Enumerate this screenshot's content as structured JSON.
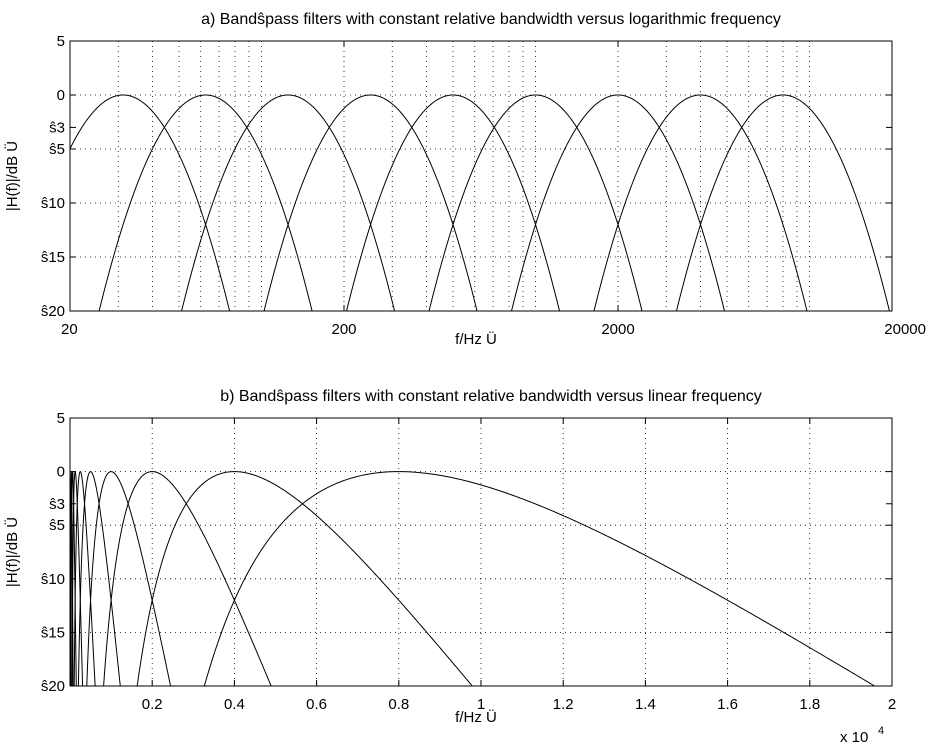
{
  "chart_data": [
    {
      "type": "line",
      "title": "a) Bandŝpass filters with constant relative bandwidth versus logarithmic frequency",
      "xlabel": "f/Hz Ü",
      "ylabel": "|H(f)|/dB Ü",
      "xscale": "log",
      "xlim": [
        20,
        20000
      ],
      "ylim": [
        -20,
        5
      ],
      "xticks": [
        20,
        200,
        2000,
        20000
      ],
      "xtick_labels": [
        "20",
        "200",
        "2000",
        "20000"
      ],
      "yticks": [
        5,
        0,
        -3,
        -5,
        -10,
        -15,
        -20
      ],
      "ytick_labels": [
        "5",
        "0",
        "ŝ3",
        "ŝ5",
        "ŝ10",
        "ŝ15",
        "ŝ20"
      ],
      "grid": true,
      "x_grid_lines": [
        20,
        30,
        40,
        50,
        60,
        70,
        80,
        90,
        100,
        200,
        300,
        400,
        500,
        600,
        700,
        800,
        900,
        1000,
        2000,
        3000,
        4000,
        5000,
        6000,
        7000,
        8000,
        9000,
        10000,
        20000
      ],
      "y_grid_lines": [
        5,
        0,
        -5,
        -10,
        -15,
        -20
      ],
      "filter_model": {
        "shape": "parabolic_in_log2_f",
        "peak_db": 0,
        "slope_db_per_octave_sq": 12
      },
      "center_frequencies": [
        31.25,
        62.5,
        125,
        250,
        500,
        1000,
        2000,
        4000,
        8000
      ]
    },
    {
      "type": "line",
      "title": "b)  Bandŝpass filters with constant relative bandwidth versus linear frequency",
      "xlabel": "f/Hz Ü",
      "ylabel": "|H(f)|/dB Ü",
      "xscale": "linear",
      "xlim": [
        0,
        20000
      ],
      "ylim": [
        -20,
        5
      ],
      "xticks": [
        2000,
        4000,
        6000,
        8000,
        10000,
        12000,
        14000,
        16000,
        18000,
        20000
      ],
      "xtick_labels": [
        "0.2",
        "0.4",
        "0.6",
        "0.8",
        "1",
        "1.2",
        "1.4",
        "1.6",
        "1.8",
        "2"
      ],
      "x_multiplier": "x 10",
      "x_multiplier_exp": "4",
      "yticks": [
        5,
        0,
        -3,
        -5,
        -10,
        -15,
        -20
      ],
      "ytick_labels": [
        "5",
        "0",
        "ŝ3",
        "ŝ5",
        "ŝ10",
        "ŝ15",
        "ŝ20"
      ],
      "grid": true,
      "x_grid_lines": [
        2000,
        4000,
        6000,
        8000,
        10000,
        12000,
        14000,
        16000,
        18000
      ],
      "y_grid_lines": [
        5,
        0,
        -5,
        -10,
        -15,
        -20
      ],
      "filter_model": {
        "shape": "parabolic_in_log2_f",
        "peak_db": 0,
        "slope_db_per_octave_sq": 12
      },
      "center_frequencies": [
        31.25,
        62.5,
        125,
        250,
        500,
        1000,
        2000,
        4000,
        8000
      ]
    }
  ]
}
